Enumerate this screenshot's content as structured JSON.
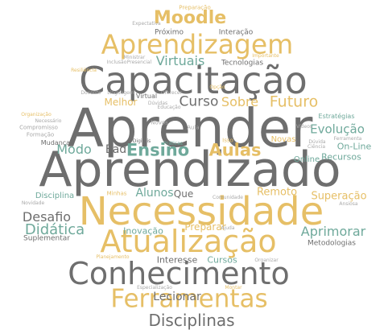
{
  "colors": {
    "dark": "#6e6e6e",
    "gold": "#e6bf66",
    "teal": "#6fa99b",
    "gray": "#a9a9a9"
  },
  "words": {
    "aprender": "Aprender",
    "aprendizado": "Aprendizado",
    "capacitacao": "Capacitação",
    "necessidade": "Necessidade",
    "conhecimento": "Conhecimento",
    "atualizacao": "Atualização",
    "aprendizagem": "Aprendizagem",
    "ferramentas": "Ferramentas",
    "moodle": "Moodle",
    "ensino": "Ensino",
    "aulas": "Aulas",
    "futuro": "Futuro",
    "curso": "Curso",
    "sobre": "Sobre",
    "disciplinas": "Disciplinas",
    "virtuais": "Virtuais",
    "melhor": "Melhor",
    "evolucao": "Evolução",
    "desafio": "Desafio",
    "didatica": "Didática",
    "aprimorar": "Aprimorar",
    "superacao": "Superação",
    "remoto": "Remoto",
    "alunos": "Alunos",
    "lecionar": "Lecionar",
    "modo": "Modo",
    "ead": "Ead",
    "inovacao": "Inovação",
    "preparar": "Preparar",
    "interesse": "Interesse",
    "cursos": "Cursos",
    "que": "Que",
    "disciplina": "Disciplina",
    "novas": "Novas",
    "recursos": "Recursos",
    "on_line": "On-Line",
    "online": "Online",
    "estrategias": "Estratégias",
    "tecnologias": "Tecnologias",
    "interacao": "Interação",
    "proximo": "Próximo",
    "suplementar": "Suplementar",
    "metodologias": "Metodologias",
    "mudancas": "Mudanças",
    "compromisso": "Compromisso",
    "formacao": "Formação",
    "necessario": "Necessário",
    "organizacao": "Organização",
    "docente": "Docente",
    "inclusao": "Inclusão",
    "presencial": "Presencial",
    "ministrar": "Ministrar",
    "expectativa": "Expectativa",
    "preparacao": "Preparação",
    "importante": "Importante",
    "resiliencia": "Resiliência",
    "linguagem": "Linguagem",
    "praticas": "Práticas",
    "digitais": "Digitais",
    "aula": "Aula",
    "novos": "Novos",
    "ciencia": "Ciência",
    "videos": "Vídeos",
    "duvida": "Dúvida",
    "ferramenta": "Ferramenta",
    "comunidade": "Comunidade",
    "ajuda": "Ajuda",
    "especializacao": "Especialização",
    "montar": "Montar",
    "novidade": "Novidade",
    "planejamento": "Planejamento",
    "organizar": "Organizar",
    "minhas": "Minhas",
    "isso": "Isso",
    "ansiosa": "Ansiosa",
    "duvidas": "Dúvidas",
    "oferecer": "Oferecer",
    "virtual": "Virtual",
    "opcao": "Opção",
    "educacao": "Educação"
  }
}
